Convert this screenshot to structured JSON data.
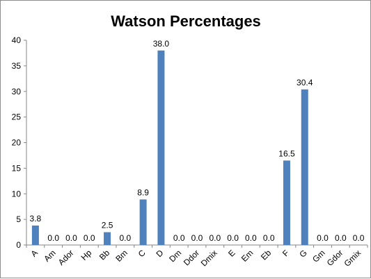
{
  "chart_data": {
    "type": "bar",
    "title": "Watson Percentages",
    "categories": [
      "A",
      "Am",
      "Ador",
      "Hp",
      "Bb",
      "Bm",
      "C",
      "D",
      "Dm",
      "Ddor",
      "Dmix",
      "E",
      "Em",
      "Eb",
      "F",
      "G",
      "Gm",
      "Gdor",
      "Gmix"
    ],
    "values": [
      3.8,
      0.0,
      0.0,
      0.0,
      2.5,
      0.0,
      8.9,
      38.0,
      0.0,
      0.0,
      0.0,
      0.0,
      0.0,
      0.0,
      16.5,
      30.4,
      0.0,
      0.0,
      0.0
    ],
    "data_labels": [
      "3.8",
      "0.0",
      "0.0",
      "0.0",
      "2.5",
      "0.0",
      "8.9",
      "38.0",
      "0.0",
      "0.0",
      "0.0",
      "0.0",
      "0.0",
      "0.0",
      "16.5",
      "30.4",
      "0.0",
      "0.0",
      "0.0"
    ],
    "y_ticks": [
      0,
      5,
      10,
      15,
      20,
      25,
      30,
      35,
      40
    ],
    "ylim": [
      0,
      40
    ],
    "grid": false,
    "legend": "none",
    "bar_color": "#4f81bd"
  }
}
